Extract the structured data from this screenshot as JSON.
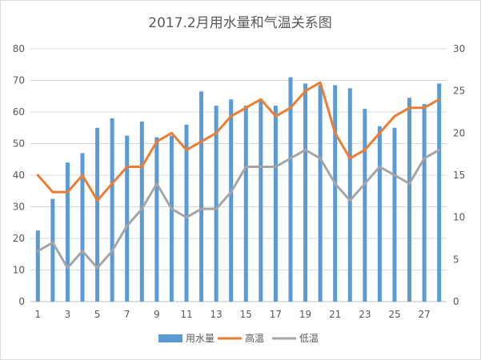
{
  "chart_data": {
    "type": "bar+line",
    "title": "2017.2月用水量和气温关系图",
    "x": [
      1,
      2,
      3,
      4,
      5,
      6,
      7,
      8,
      9,
      10,
      11,
      12,
      13,
      14,
      15,
      16,
      17,
      18,
      19,
      20,
      21,
      22,
      23,
      24,
      25,
      26,
      27,
      28
    ],
    "x_tick_labels": [
      "1",
      "3",
      "5",
      "7",
      "9",
      "11",
      "13",
      "15",
      "17",
      "19",
      "21",
      "23",
      "25",
      "27"
    ],
    "series": [
      {
        "name": "用水量",
        "kind": "bar",
        "axis": "left",
        "color": "#5b9bd5",
        "values": [
          22.5,
          32.5,
          44,
          47,
          55,
          58,
          52.5,
          57,
          52,
          52.5,
          56,
          66.5,
          62,
          64,
          62,
          64,
          62,
          71,
          69,
          68.5,
          68.5,
          67.5,
          61,
          55.5,
          55,
          64.5,
          62.5,
          69
        ]
      },
      {
        "name": "高温",
        "kind": "line",
        "axis": "right",
        "color": "#ed7d31",
        "values": [
          15,
          13,
          13,
          15,
          12,
          14,
          16,
          16,
          19,
          20,
          18,
          19,
          20,
          22,
          23,
          24,
          22,
          23,
          25,
          26,
          20,
          17,
          18,
          20,
          22,
          23,
          23,
          24
        ]
      },
      {
        "name": "低温",
        "kind": "line",
        "axis": "right",
        "color": "#a5a5a5",
        "values": [
          6,
          7,
          4,
          6,
          4,
          6,
          9,
          11,
          14,
          11,
          10,
          11,
          11,
          13,
          16,
          16,
          16,
          17,
          18,
          17,
          14,
          12,
          14,
          16,
          15,
          14,
          17,
          18
        ]
      }
    ],
    "y_left": {
      "min": 0,
      "max": 80,
      "ticks": [
        0,
        10,
        20,
        30,
        40,
        50,
        60,
        70,
        80
      ]
    },
    "y_right": {
      "min": 0,
      "max": 30,
      "ticks": [
        0,
        5,
        10,
        15,
        20,
        25,
        30
      ]
    },
    "grid": true,
    "legend": "bottom"
  }
}
